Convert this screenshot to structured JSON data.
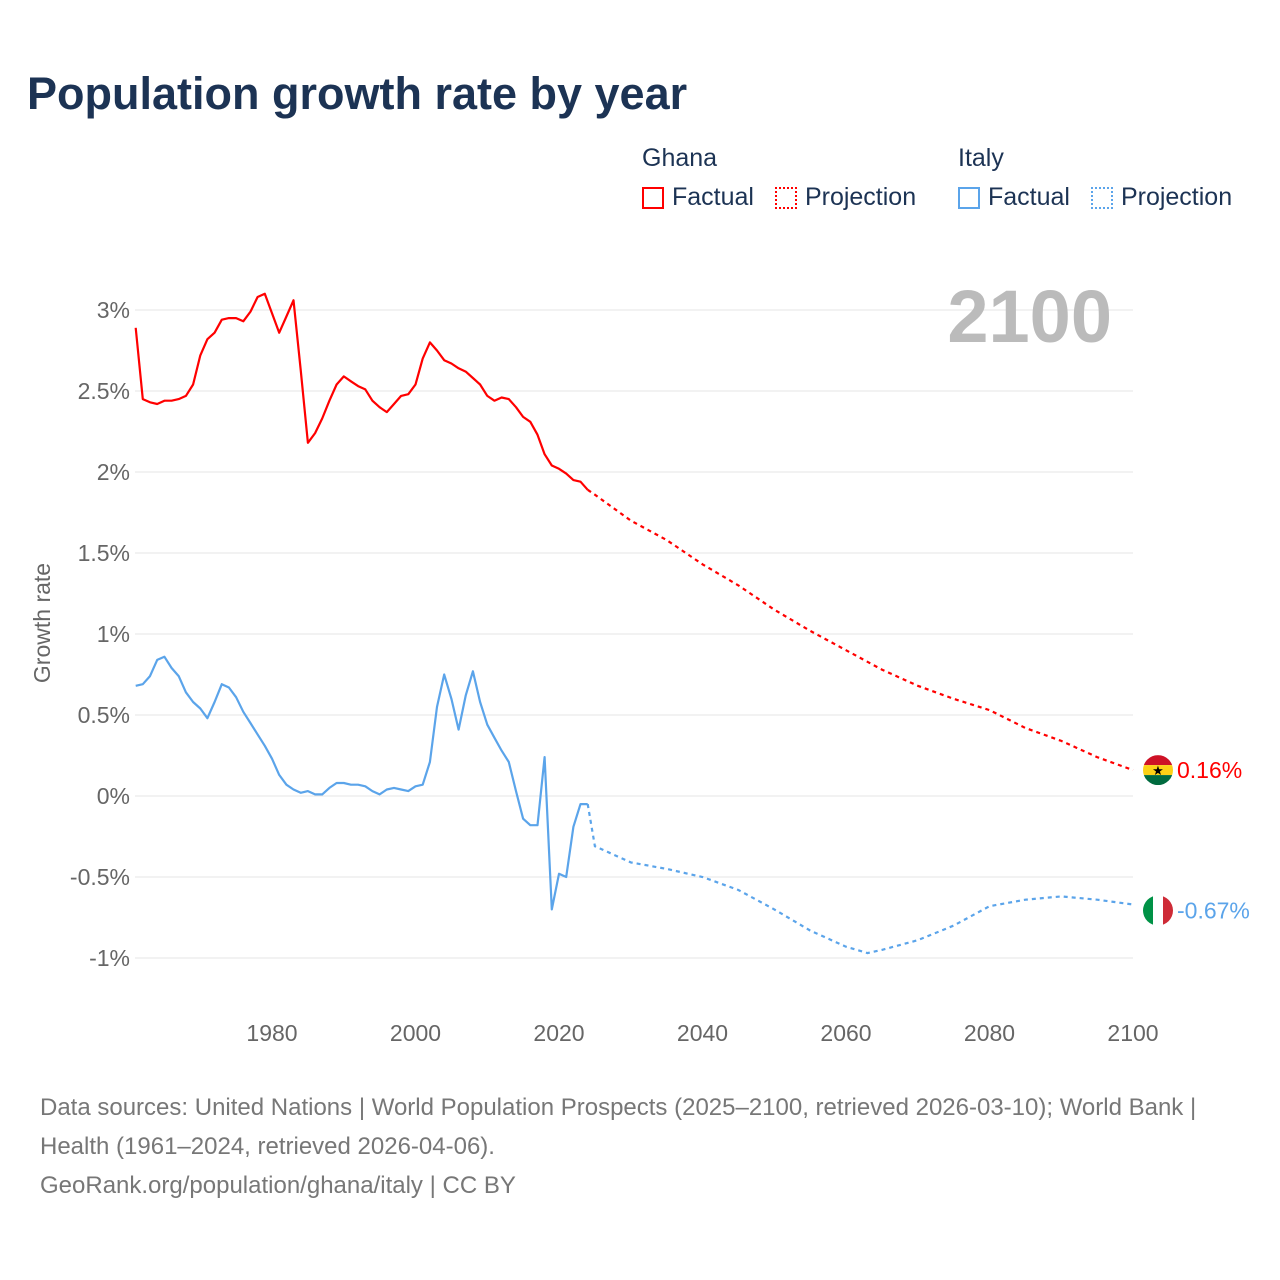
{
  "title": "Population growth rate by year",
  "legend": {
    "groups": [
      {
        "name": "Ghana",
        "color": "#ff0000",
        "factual": "Factual",
        "projection": "Projection"
      },
      {
        "name": "Italy",
        "color": "#5ba4ea",
        "factual": "Factual",
        "projection": "Projection"
      }
    ]
  },
  "year_label": "2100",
  "footer": {
    "sources": "Data sources: United Nations | World Population Prospects (2025–2100, retrieved 2026-03-10); World Bank | Health (1961–2024, retrieved 2026-04-06).",
    "credit": "GeoRank.org/population/ghana/italy | CC BY"
  },
  "chart_data": {
    "type": "line",
    "title": "Population growth rate by year",
    "xlabel": "",
    "ylabel": "Growth rate",
    "xlim": [
      1961,
      2100
    ],
    "ylim": [
      -1.2,
      3.2
    ],
    "x_ticks": [
      1980,
      2000,
      2020,
      2040,
      2060,
      2080,
      2100
    ],
    "x_tick_labels": [
      "1980",
      "2000",
      "2020",
      "2040",
      "2060",
      "2080",
      "2100"
    ],
    "y_ticks": [
      3,
      2.5,
      2,
      1.5,
      1,
      0.5,
      0,
      -0.5,
      -1
    ],
    "y_tick_labels": [
      "3%",
      "2.5%",
      "2%",
      "1.5%",
      "1%",
      "0.5%",
      "0%",
      "-0.5%",
      "-1%"
    ],
    "grid": true,
    "legend_position": "top-right",
    "series": [
      {
        "name": "Ghana",
        "color": "#ff0000",
        "end_label": "0.16%",
        "factual": {
          "x": [
            1961,
            1962,
            1963,
            1964,
            1965,
            1966,
            1967,
            1968,
            1969,
            1970,
            1971,
            1972,
            1973,
            1974,
            1975,
            1976,
            1977,
            1978,
            1979,
            1980,
            1981,
            1982,
            1983,
            1984,
            1985,
            1986,
            1987,
            1988,
            1989,
            1990,
            1991,
            1992,
            1993,
            1994,
            1995,
            1996,
            1997,
            1998,
            1999,
            2000,
            2001,
            2002,
            2003,
            2004,
            2005,
            2006,
            2007,
            2008,
            2009,
            2010,
            2011,
            2012,
            2013,
            2014,
            2015,
            2016,
            2017,
            2018,
            2019,
            2020,
            2021,
            2022,
            2023,
            2024
          ],
          "y": [
            2.89,
            2.45,
            2.43,
            2.42,
            2.44,
            2.44,
            2.45,
            2.47,
            2.54,
            2.72,
            2.82,
            2.86,
            2.94,
            2.95,
            2.95,
            2.93,
            2.99,
            3.08,
            3.1,
            2.98,
            2.86,
            2.96,
            3.06,
            2.63,
            2.18,
            2.24,
            2.33,
            2.44,
            2.54,
            2.59,
            2.56,
            2.53,
            2.51,
            2.44,
            2.4,
            2.37,
            2.42,
            2.47,
            2.48,
            2.54,
            2.7,
            2.8,
            2.75,
            2.69,
            2.67,
            2.64,
            2.62,
            2.58,
            2.54,
            2.47,
            2.44,
            2.46,
            2.45,
            2.4,
            2.34,
            2.31,
            2.23,
            2.11,
            2.04,
            2.02,
            1.99,
            1.95,
            1.94,
            1.89
          ]
        },
        "projection": {
          "x": [
            2024,
            2025,
            2030,
            2035,
            2040,
            2045,
            2050,
            2055,
            2060,
            2065,
            2070,
            2075,
            2080,
            2085,
            2090,
            2095,
            2100
          ],
          "y": [
            1.89,
            1.86,
            1.7,
            1.58,
            1.43,
            1.3,
            1.15,
            1.02,
            0.9,
            0.78,
            0.68,
            0.6,
            0.53,
            0.42,
            0.34,
            0.24,
            0.16
          ]
        }
      },
      {
        "name": "Italy",
        "color": "#5ba4ea",
        "end_label": "-0.67%",
        "factual": {
          "x": [
            1961,
            1962,
            1963,
            1964,
            1965,
            1966,
            1967,
            1968,
            1969,
            1970,
            1971,
            1972,
            1973,
            1974,
            1975,
            1976,
            1977,
            1978,
            1979,
            1980,
            1981,
            1982,
            1983,
            1984,
            1985,
            1986,
            1987,
            1988,
            1989,
            1990,
            1991,
            1992,
            1993,
            1994,
            1995,
            1996,
            1997,
            1998,
            1999,
            2000,
            2001,
            2002,
            2003,
            2004,
            2005,
            2006,
            2007,
            2008,
            2009,
            2010,
            2011,
            2012,
            2013,
            2014,
            2015,
            2016,
            2017,
            2018,
            2019,
            2020,
            2021,
            2022,
            2023,
            2024
          ],
          "y": [
            0.68,
            0.69,
            0.74,
            0.84,
            0.86,
            0.79,
            0.74,
            0.64,
            0.58,
            0.54,
            0.48,
            0.58,
            0.69,
            0.67,
            0.61,
            0.52,
            0.45,
            0.38,
            0.31,
            0.23,
            0.13,
            0.07,
            0.04,
            0.02,
            0.03,
            0.01,
            0.01,
            0.05,
            0.08,
            0.08,
            0.07,
            0.07,
            0.06,
            0.03,
            0.01,
            0.04,
            0.05,
            0.04,
            0.03,
            0.06,
            0.07,
            0.21,
            0.55,
            0.75,
            0.6,
            0.41,
            0.62,
            0.77,
            0.58,
            0.44,
            0.36,
            0.28,
            0.21,
            0.03,
            -0.14,
            -0.18,
            -0.18,
            0.24,
            -0.7,
            -0.48,
            -0.5,
            -0.19,
            -0.05,
            -0.05
          ]
        },
        "projection": {
          "x": [
            2024,
            2025,
            2030,
            2035,
            2040,
            2045,
            2050,
            2055,
            2060,
            2063,
            2065,
            2070,
            2075,
            2080,
            2085,
            2090,
            2095,
            2100
          ],
          "y": [
            -0.05,
            -0.31,
            -0.41,
            -0.45,
            -0.5,
            -0.58,
            -0.7,
            -0.83,
            -0.93,
            -0.97,
            -0.95,
            -0.89,
            -0.8,
            -0.68,
            -0.64,
            -0.62,
            -0.64,
            -0.67
          ]
        }
      }
    ]
  }
}
